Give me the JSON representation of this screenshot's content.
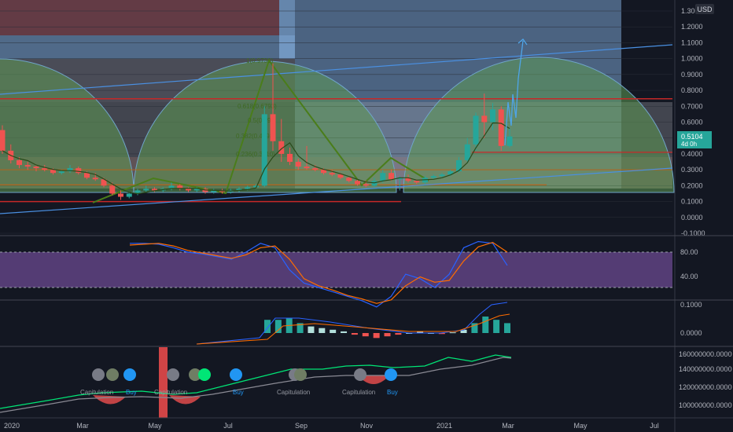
{
  "chart_data": [
    {
      "type": "candlestick",
      "currency_label": "USD",
      "price_ticks": [
        "1.3000",
        "1.2000",
        "1.1000",
        "1.0000",
        "0.9000",
        "0.8000",
        "0.7000",
        "0.6000",
        "0.5000",
        "0.4000",
        "0.3000",
        "0.2000",
        "0.1000",
        "0.0000",
        "-0.1000"
      ],
      "last_price": "0.5104",
      "countdown": "4d 0h",
      "fib_labels": [
        "1(0.9736)",
        "0.618(0.6793)",
        "0.5(0.59)",
        "0.382(0.4998)",
        "0.236(0.3810)"
      ],
      "horizontal_levels": [
        0.747,
        0.41,
        0.3,
        0.205,
        0.1
      ],
      "candles": [
        {
          "o": 0.55,
          "h": 0.58,
          "l": 0.4,
          "c": 0.42
        },
        {
          "o": 0.42,
          "h": 0.46,
          "l": 0.34,
          "c": 0.36
        },
        {
          "o": 0.36,
          "h": 0.38,
          "l": 0.31,
          "c": 0.33
        },
        {
          "o": 0.33,
          "h": 0.35,
          "l": 0.3,
          "c": 0.32
        },
        {
          "o": 0.32,
          "h": 0.33,
          "l": 0.29,
          "c": 0.31
        },
        {
          "o": 0.31,
          "h": 0.33,
          "l": 0.29,
          "c": 0.3
        },
        {
          "o": 0.3,
          "h": 0.31,
          "l": 0.27,
          "c": 0.28
        },
        {
          "o": 0.28,
          "h": 0.3,
          "l": 0.27,
          "c": 0.29
        },
        {
          "o": 0.29,
          "h": 0.33,
          "l": 0.28,
          "c": 0.31
        },
        {
          "o": 0.31,
          "h": 0.32,
          "l": 0.27,
          "c": 0.28
        },
        {
          "o": 0.28,
          "h": 0.29,
          "l": 0.24,
          "c": 0.25
        },
        {
          "o": 0.25,
          "h": 0.28,
          "l": 0.23,
          "c": 0.24
        },
        {
          "o": 0.24,
          "h": 0.25,
          "l": 0.19,
          "c": 0.2
        },
        {
          "o": 0.2,
          "h": 0.22,
          "l": 0.14,
          "c": 0.15
        },
        {
          "o": 0.15,
          "h": 0.17,
          "l": 0.11,
          "c": 0.13
        },
        {
          "o": 0.13,
          "h": 0.16,
          "l": 0.12,
          "c": 0.15
        },
        {
          "o": 0.15,
          "h": 0.18,
          "l": 0.14,
          "c": 0.17
        },
        {
          "o": 0.17,
          "h": 0.2,
          "l": 0.16,
          "c": 0.18
        },
        {
          "o": 0.18,
          "h": 0.19,
          "l": 0.16,
          "c": 0.17
        },
        {
          "o": 0.17,
          "h": 0.19,
          "l": 0.16,
          "c": 0.18
        },
        {
          "o": 0.18,
          "h": 0.22,
          "l": 0.17,
          "c": 0.2
        },
        {
          "o": 0.2,
          "h": 0.21,
          "l": 0.17,
          "c": 0.18
        },
        {
          "o": 0.18,
          "h": 0.19,
          "l": 0.16,
          "c": 0.17
        },
        {
          "o": 0.17,
          "h": 0.19,
          "l": 0.16,
          "c": 0.18
        },
        {
          "o": 0.18,
          "h": 0.19,
          "l": 0.15,
          "c": 0.16
        },
        {
          "o": 0.16,
          "h": 0.18,
          "l": 0.15,
          "c": 0.17
        },
        {
          "o": 0.17,
          "h": 0.18,
          "l": 0.15,
          "c": 0.16
        },
        {
          "o": 0.16,
          "h": 0.18,
          "l": 0.15,
          "c": 0.17
        },
        {
          "o": 0.17,
          "h": 0.19,
          "l": 0.16,
          "c": 0.18
        },
        {
          "o": 0.18,
          "h": 0.2,
          "l": 0.17,
          "c": 0.19
        },
        {
          "o": 0.19,
          "h": 0.21,
          "l": 0.18,
          "c": 0.2
        },
        {
          "o": 0.2,
          "h": 0.7,
          "l": 0.19,
          "c": 0.65
        },
        {
          "o": 0.65,
          "h": 0.97,
          "l": 0.42,
          "c": 0.48
        },
        {
          "o": 0.48,
          "h": 0.62,
          "l": 0.35,
          "c": 0.4
        },
        {
          "o": 0.4,
          "h": 0.44,
          "l": 0.33,
          "c": 0.35
        },
        {
          "o": 0.35,
          "h": 0.37,
          "l": 0.3,
          "c": 0.32
        },
        {
          "o": 0.32,
          "h": 0.45,
          "l": 0.3,
          "c": 0.31
        },
        {
          "o": 0.31,
          "h": 0.33,
          "l": 0.29,
          "c": 0.3
        },
        {
          "o": 0.3,
          "h": 0.31,
          "l": 0.27,
          "c": 0.28
        },
        {
          "o": 0.28,
          "h": 0.3,
          "l": 0.26,
          "c": 0.27
        },
        {
          "o": 0.27,
          "h": 0.28,
          "l": 0.24,
          "c": 0.25
        },
        {
          "o": 0.25,
          "h": 0.26,
          "l": 0.22,
          "c": 0.23
        },
        {
          "o": 0.23,
          "h": 0.24,
          "l": 0.2,
          "c": 0.21
        },
        {
          "o": 0.21,
          "h": 0.23,
          "l": 0.19,
          "c": 0.2
        },
        {
          "o": 0.2,
          "h": 0.25,
          "l": 0.19,
          "c": 0.23
        },
        {
          "o": 0.23,
          "h": 0.3,
          "l": 0.22,
          "c": 0.28
        },
        {
          "o": 0.28,
          "h": 0.3,
          "l": 0.23,
          "c": 0.24
        },
        {
          "o": 0.24,
          "h": 0.26,
          "l": 0.17,
          "c": 0.25
        },
        {
          "o": 0.25,
          "h": 0.27,
          "l": 0.22,
          "c": 0.23
        },
        {
          "o": 0.23,
          "h": 0.24,
          "l": 0.21,
          "c": 0.22
        },
        {
          "o": 0.22,
          "h": 0.26,
          "l": 0.21,
          "c": 0.25
        },
        {
          "o": 0.25,
          "h": 0.27,
          "l": 0.24,
          "c": 0.26
        },
        {
          "o": 0.26,
          "h": 0.28,
          "l": 0.25,
          "c": 0.27
        },
        {
          "o": 0.27,
          "h": 0.3,
          "l": 0.26,
          "c": 0.29
        },
        {
          "o": 0.29,
          "h": 0.38,
          "l": 0.28,
          "c": 0.36
        },
        {
          "o": 0.36,
          "h": 0.5,
          "l": 0.34,
          "c": 0.46
        },
        {
          "o": 0.46,
          "h": 0.66,
          "l": 0.42,
          "c": 0.64
        },
        {
          "o": 0.64,
          "h": 0.78,
          "l": 0.5,
          "c": 0.6
        },
        {
          "o": 0.6,
          "h": 0.72,
          "l": 0.55,
          "c": 0.68
        },
        {
          "o": 0.68,
          "h": 0.7,
          "l": 0.42,
          "c": 0.45
        },
        {
          "o": 0.45,
          "h": 0.56,
          "l": 0.44,
          "c": 0.51
        }
      ],
      "indicators": [
        {
          "type": "stochastic",
          "ticks": [
            "80.00",
            "40.00"
          ],
          "range": [
            0,
            100
          ],
          "k": [
            90,
            90,
            89,
            85,
            80,
            78,
            75,
            72,
            80,
            90,
            85,
            60,
            45,
            40,
            35,
            30,
            25,
            18,
            30,
            55,
            50,
            40,
            55,
            85,
            92,
            90,
            65
          ],
          "d": [
            88,
            89,
            90,
            87,
            82,
            79,
            76,
            73,
            77,
            85,
            87,
            72,
            50,
            42,
            37,
            31,
            27,
            22,
            26,
            42,
            52,
            46,
            48,
            70,
            86,
            91,
            80
          ]
        },
        {
          "type": "macd",
          "ticks": [
            "0.1000",
            "0.0000"
          ],
          "histogram": [
            0.04,
            0.04,
            0.045,
            0.03,
            0.02,
            0.015,
            0.01,
            0.005,
            -0.005,
            -0.01,
            -0.015,
            -0.01,
            -0.005,
            0.0,
            0.005,
            0.0,
            -0.003,
            0.002,
            0.01,
            0.03,
            0.05,
            0.04,
            0.03
          ]
        },
        {
          "type": "volume_obv",
          "ticks": [
            "160000000.0000",
            "140000000.0000",
            "120000000.0000",
            "100000000.0000"
          ],
          "labels": [
            "Capitulation",
            "Buy",
            "Capitulation",
            "Buy",
            "Capitulation",
            "Capitulation",
            "Buy"
          ]
        }
      ],
      "x_ticks": [
        "2020",
        "Mar",
        "May",
        "Jul",
        "Sep",
        "Nov",
        "2021",
        "Mar",
        "May",
        "Jul"
      ]
    }
  ]
}
